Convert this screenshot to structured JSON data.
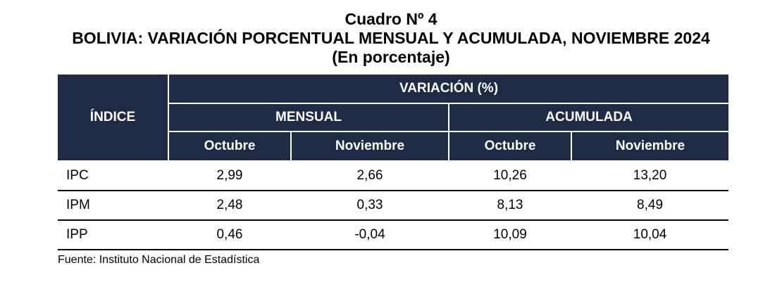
{
  "header": {
    "number": "Cuadro Nº 4",
    "title": "BOLIVIA: VARIACIÓN PORCENTUAL MENSUAL Y ACUMULADA, NOVIEMBRE 2024",
    "unit": "(En porcentaje)"
  },
  "table": {
    "index_header": "ÍNDICE",
    "variation_header": "VARIACIÓN (%)",
    "group_monthly": "MENSUAL",
    "group_cumulative": "ACUMULADA",
    "col_october": "Octubre",
    "col_november": "Noviembre",
    "rows": [
      {
        "label": "IPC",
        "monthly_oct": "2,99",
        "monthly_nov": "2,66",
        "cum_oct": "10,26",
        "cum_nov": "13,20"
      },
      {
        "label": "IPM",
        "monthly_oct": "2,48",
        "monthly_nov": "0,33",
        "cum_oct": "8,13",
        "cum_nov": "8,49"
      },
      {
        "label": "IPP",
        "monthly_oct": "0,46",
        "monthly_nov": "-0,04",
        "cum_oct": "10,09",
        "cum_nov": "10,04"
      }
    ]
  },
  "footer": {
    "source": "Fuente: Instituto Nacional de Estadística"
  },
  "colors": {
    "header_background": "#1f2a44",
    "header_text": "#ffffff",
    "row_rule": "#000000"
  }
}
